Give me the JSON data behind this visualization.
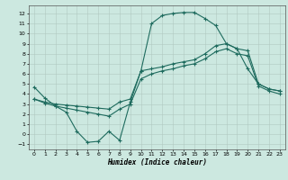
{
  "xlabel": "Humidex (Indice chaleur)",
  "ylabel": "",
  "xlim": [
    -0.5,
    23.5
  ],
  "ylim": [
    -1.5,
    12.8
  ],
  "yticks": [
    -1,
    0,
    1,
    2,
    3,
    4,
    5,
    6,
    7,
    8,
    9,
    10,
    11,
    12
  ],
  "xticks": [
    0,
    1,
    2,
    3,
    4,
    5,
    6,
    7,
    8,
    9,
    10,
    11,
    12,
    13,
    14,
    15,
    16,
    17,
    18,
    19,
    20,
    21,
    22,
    23
  ],
  "background_color": "#cce8e0",
  "grid_color": "#b0c8c0",
  "line_color": "#1e6b5e",
  "line1_x": [
    0,
    1,
    2,
    3,
    4,
    5,
    6,
    7,
    8,
    9,
    10,
    11,
    12,
    13,
    14,
    15,
    16,
    17,
    18,
    19,
    20,
    21,
    22,
    23
  ],
  "line1_y": [
    4.7,
    3.6,
    2.8,
    2.2,
    0.3,
    -0.8,
    -0.7,
    0.3,
    -0.6,
    3.2,
    6.3,
    11.0,
    11.8,
    12.0,
    12.1,
    12.1,
    11.5,
    10.8,
    9.0,
    8.5,
    6.5,
    5.0,
    4.5,
    4.3
  ],
  "line2_x": [
    0,
    1,
    2,
    3,
    4,
    5,
    6,
    7,
    8,
    9,
    10,
    11,
    12,
    13,
    14,
    15,
    16,
    17,
    18,
    19,
    20,
    21,
    22,
    23
  ],
  "line2_y": [
    3.5,
    3.2,
    3.0,
    2.9,
    2.8,
    2.7,
    2.6,
    2.5,
    3.2,
    3.5,
    6.3,
    6.5,
    6.7,
    7.0,
    7.2,
    7.4,
    8.0,
    8.8,
    9.0,
    8.5,
    8.3,
    5.0,
    4.5,
    4.3
  ],
  "line3_x": [
    0,
    1,
    2,
    3,
    4,
    5,
    6,
    7,
    8,
    9,
    10,
    11,
    12,
    13,
    14,
    15,
    16,
    17,
    18,
    19,
    20,
    21,
    22,
    23
  ],
  "line3_y": [
    3.5,
    3.1,
    2.8,
    2.6,
    2.4,
    2.2,
    2.0,
    1.8,
    2.5,
    3.0,
    5.5,
    6.0,
    6.3,
    6.5,
    6.8,
    7.0,
    7.5,
    8.2,
    8.5,
    8.0,
    7.8,
    4.8,
    4.3,
    4.0
  ]
}
